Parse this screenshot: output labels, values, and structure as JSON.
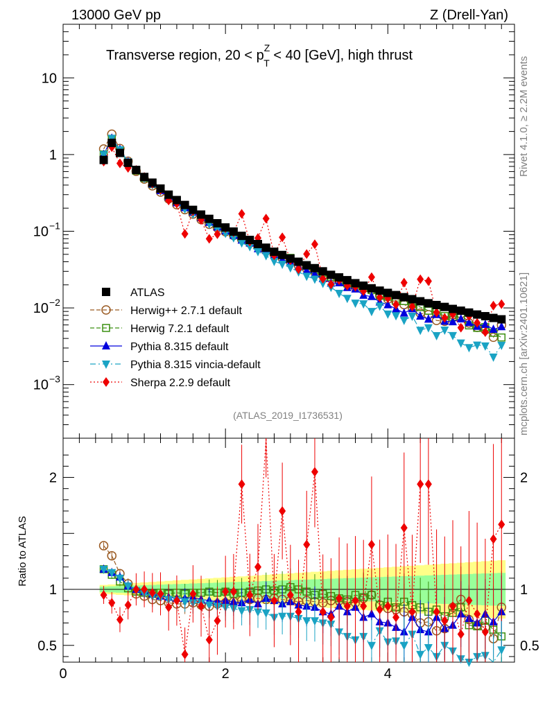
{
  "header": {
    "left": "13000 GeV pp",
    "right": "Z (Drell-Yan)"
  },
  "title": {
    "prefix": "Transverse region, 20 < p",
    "sup": "Z",
    "sub": "T",
    "suffix": " < 40 [GeV], high thrust"
  },
  "side_labels": {
    "rivet": "Rivet 4.1.0, ≥ 2.2M events",
    "mcplots": "mcplots.cern.ch [arXiv:2401.10621]"
  },
  "analysis_id": "(ATLAS_2019_I1736531)",
  "ratio_ylabel": "Ratio to ATLAS",
  "colors": {
    "atlas": "#000000",
    "herwigpp": "#9a5a22",
    "herwig7": "#3a8f10",
    "pythia": "#0000dd",
    "vincia": "#1aa3c4",
    "sherpa": "#ee0000",
    "band_inner": "#99ff99",
    "band_outer": "#ffff88"
  },
  "chart_data": {
    "type": "scatter",
    "x_range": [
      0,
      5.56
    ],
    "x_ticks": [
      "0",
      "2",
      "4"
    ],
    "main": {
      "y_scale": "log",
      "y_range": [
        0.0002,
        50
      ],
      "y_ticks": [
        {
          "value": 0.001,
          "label": "10",
          "exp": "−3"
        },
        {
          "value": 0.01,
          "label": "10",
          "exp": "−2"
        },
        {
          "value": 0.1,
          "label": "10",
          "exp": "−1"
        },
        {
          "value": 1,
          "label": "1",
          "exp": ""
        },
        {
          "value": 10,
          "label": "10",
          "exp": ""
        }
      ]
    },
    "ratio": {
      "y_range": [
        0.35,
        2.35
      ],
      "y_ticks": [
        "0.5",
        "1",
        "2"
      ]
    },
    "x": [
      0.5,
      0.6,
      0.7,
      0.8,
      0.9,
      1.0,
      1.1,
      1.2,
      1.3,
      1.4,
      1.5,
      1.6,
      1.7,
      1.8,
      1.9,
      2.0,
      2.1,
      2.2,
      2.3,
      2.4,
      2.5,
      2.6,
      2.7,
      2.8,
      2.9,
      3.0,
      3.1,
      3.2,
      3.3,
      3.4,
      3.5,
      3.6,
      3.7,
      3.8,
      3.9,
      4.0,
      4.1,
      4.2,
      4.3,
      4.4,
      4.5,
      4.6,
      4.7,
      4.8,
      4.9,
      5.0,
      5.1,
      5.2,
      5.3,
      5.4
    ],
    "legend": [
      "ATLAS",
      "Herwig++ 2.7.1 default",
      "Herwig 7.2.1 default",
      "Pythia 8.315 default",
      "Pythia 8.315 vincia-default",
      "Sherpa 2.2.9 default"
    ],
    "series": [
      {
        "name": "ATLAS",
        "values": [
          0.85,
          1.42,
          1.05,
          0.78,
          0.63,
          0.51,
          0.43,
          0.36,
          0.3,
          0.255,
          0.22,
          0.19,
          0.165,
          0.145,
          0.127,
          0.112,
          0.099,
          0.087,
          0.077,
          0.068,
          0.061,
          0.054,
          0.049,
          0.044,
          0.04,
          0.036,
          0.033,
          0.03,
          0.027,
          0.025,
          0.023,
          0.021,
          0.0195,
          0.018,
          0.0168,
          0.0157,
          0.0147,
          0.0138,
          0.013,
          0.0122,
          0.0115,
          0.0109,
          0.0103,
          0.0097,
          0.0092,
          0.0087,
          0.0082,
          0.0078,
          0.0074,
          0.0071
        ]
      },
      {
        "name": "Herwig++ 2.7.1 default",
        "ratio": [
          1.39,
          1.3,
          1.14,
          1.05,
          0.96,
          0.94,
          0.91,
          0.9,
          0.88,
          0.87,
          0.87,
          0.88,
          0.86,
          0.85,
          0.87,
          0.88,
          0.89,
          0.9,
          0.91,
          0.92,
          0.91,
          0.92,
          0.91,
          0.9,
          0.89,
          0.9,
          0.89,
          0.88,
          0.9,
          0.9,
          0.89,
          0.88,
          0.92,
          0.95,
          0.86,
          0.83,
          0.82,
          0.8,
          0.78,
          0.7,
          0.71,
          0.63,
          0.65,
          0.84,
          0.91,
          0.73,
          0.68,
          0.66,
          0.56,
          0.84
        ]
      },
      {
        "name": "Herwig 7.2.1 default",
        "ratio": [
          1.18,
          1.13,
          1.07,
          1.01,
          0.98,
          0.97,
          0.96,
          0.97,
          0.96,
          0.97,
          0.96,
          0.97,
          0.97,
          0.98,
          0.97,
          0.98,
          0.96,
          0.97,
          0.98,
          0.99,
          1.0,
          0.99,
          1.0,
          1.02,
          1.0,
          0.98,
          0.95,
          0.96,
          0.94,
          0.92,
          0.91,
          0.95,
          0.93,
          0.95,
          0.86,
          0.89,
          0.84,
          0.89,
          0.86,
          0.84,
          0.8,
          0.82,
          0.76,
          0.79,
          0.84,
          0.68,
          0.67,
          0.72,
          0.64,
          0.58
        ]
      },
      {
        "name": "Pythia 8.315 default",
        "ratio": [
          1.18,
          1.15,
          1.11,
          1.03,
          1.0,
          0.98,
          0.96,
          0.94,
          0.93,
          0.92,
          0.92,
          0.93,
          0.91,
          0.9,
          0.89,
          0.9,
          0.89,
          0.88,
          0.91,
          0.87,
          0.92,
          0.9,
          0.87,
          0.89,
          0.86,
          0.85,
          0.84,
          0.8,
          0.78,
          0.85,
          0.8,
          0.84,
          0.75,
          0.78,
          0.71,
          0.7,
          0.66,
          0.62,
          0.75,
          0.64,
          0.62,
          0.75,
          0.65,
          0.68,
          0.78,
          0.74,
          0.7,
          0.78,
          0.71,
          0.8
        ]
      },
      {
        "name": "Pythia 8.315 vincia-default",
        "ratio": [
          1.18,
          1.15,
          1.1,
          1.03,
          0.99,
          0.96,
          0.94,
          0.93,
          0.91,
          0.9,
          0.89,
          0.88,
          0.88,
          0.86,
          0.85,
          0.84,
          0.83,
          0.81,
          0.82,
          0.8,
          0.79,
          0.75,
          0.76,
          0.76,
          0.74,
          0.72,
          0.72,
          0.7,
          0.69,
          0.62,
          0.58,
          0.55,
          0.58,
          0.5,
          0.63,
          0.53,
          0.54,
          0.5,
          0.6,
          0.42,
          0.48,
          0.4,
          0.5,
          0.45,
          0.38,
          0.35,
          0.4,
          0.41,
          0.31,
          0.46
        ]
      },
      {
        "name": "Sherpa 2.2.9 default",
        "ratio": [
          0.95,
          0.88,
          0.73,
          0.86,
          1.0,
          1.0,
          0.97,
          0.96,
          0.84,
          0.9,
          0.42,
          0.96,
          0.85,
          0.55,
          0.72,
          0.98,
          0.98,
          1.94,
          0.95,
          1.2,
          2.4,
          0.9,
          1.7,
          0.95,
          0.8,
          1.4,
          2.05,
          0.8,
          0.75,
          0.92,
          0.85,
          0.9,
          0.85,
          1.4,
          0.82,
          0.85,
          0.75,
          1.55,
          0.8,
          1.94,
          1.94,
          0.8,
          0.72,
          0.85,
          0.6,
          0.9,
          0.78,
          0.62,
          1.45,
          1.58
        ]
      }
    ]
  }
}
